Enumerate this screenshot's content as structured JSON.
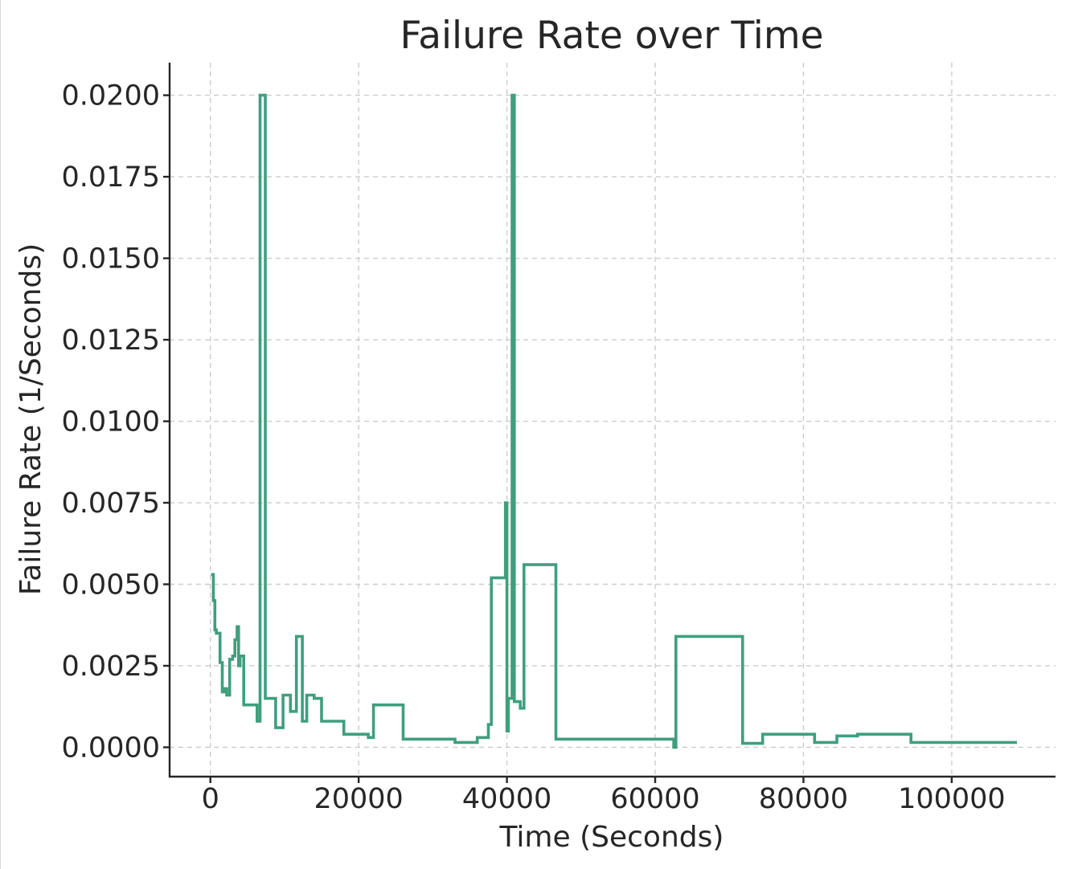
{
  "chart_data": {
    "type": "line",
    "title": "Failure Rate over Time",
    "xlabel": "Time (Seconds)",
    "ylabel": "Failure Rate (1/Seconds)",
    "xlim": [
      -5500,
      114000
    ],
    "ylim": [
      -0.0009,
      0.021
    ],
    "xticks": [
      0,
      20000,
      40000,
      60000,
      80000,
      100000
    ],
    "xtick_labels": [
      "0",
      "20000",
      "40000",
      "60000",
      "80000",
      "100000"
    ],
    "yticks": [
      0.0,
      0.0025,
      0.005,
      0.0075,
      0.01,
      0.0125,
      0.015,
      0.0175,
      0.02
    ],
    "ytick_labels": [
      "0.0000",
      "0.0025",
      "0.0050",
      "0.0075",
      "0.0100",
      "0.0125",
      "0.0150",
      "0.0175",
      "0.0200"
    ],
    "grid": true,
    "legend": false,
    "color": "#3f9f7d",
    "series": [
      {
        "step": "post",
        "x": [
          100,
          400,
          600,
          800,
          1300,
          1600,
          1900,
          2200,
          2600,
          3000,
          3300,
          3600,
          3800,
          4000,
          4100,
          4500,
          5000,
          6300,
          6700,
          7400,
          8800,
          9000,
          9800,
          10800,
          11600,
          12400,
          13000,
          13300,
          14000,
          15000,
          18000,
          21300,
          22000,
          26000,
          33000,
          36000,
          37500,
          37900,
          39800,
          40000,
          40200,
          40700,
          41000,
          41800,
          42300,
          42700,
          46600,
          62500,
          62800,
          71800,
          74500,
          81500,
          84500,
          87300,
          94500,
          108800
        ],
        "y": [
          0.0053,
          0.0045,
          0.0036,
          0.0035,
          0.0026,
          0.0017,
          0.0018,
          0.0016,
          0.0027,
          0.0028,
          0.0033,
          0.0037,
          0.0025,
          0.0028,
          0.0028,
          0.0013,
          0.0013,
          0.0008,
          0.02,
          0.0015,
          0.0006,
          0.0006,
          0.0016,
          0.0011,
          0.0034,
          0.0008,
          0.0016,
          0.0016,
          0.0015,
          0.0008,
          0.0004,
          0.0003,
          0.0013,
          0.00025,
          0.00015,
          0.0003,
          0.0007,
          0.0052,
          0.0075,
          0.0005,
          0.0015,
          0.02,
          0.0014,
          0.0012,
          0.0056,
          0.0056,
          0.00025,
          0.0,
          0.0034,
          0.00012,
          0.0004,
          0.00015,
          0.00035,
          0.0004,
          0.00015,
          0.00015
        ]
      }
    ]
  }
}
